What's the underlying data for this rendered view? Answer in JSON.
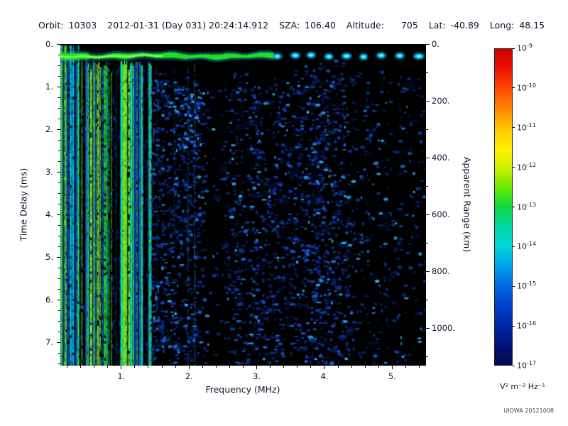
{
  "header": {
    "items": [
      {
        "label": "Orbit:",
        "value": "10303"
      },
      {
        "label": "",
        "value": "2012-01-31 (Day 031) 20:24:14.912"
      },
      {
        "label": "SZA:",
        "value": "106.40"
      },
      {
        "label": "Altitude:",
        "value": "705"
      },
      {
        "label": "Lat:",
        "value": "-40.89"
      },
      {
        "label": "Long:",
        "value": "48.15"
      }
    ]
  },
  "credit": "UIOWA 20121008",
  "chart_data": {
    "type": "heatmap",
    "description": "Radar sounder ionogram: received spectral density versus sounding frequency and echo time delay; black background, blue speckle echoes, bright green surface-reflection band near 0.28 ms, green/cyan plasma-harmonic vertical stripes below 1.45 MHz, dark gap near 2.3-2.5 MHz, dense blue column near 3.85-4.2 MHz",
    "xlabel": "Frequency (MHz)",
    "ylabel_left": "Time Delay (ms)",
    "ylabel_right": "Apparent Range (km)",
    "x_range_mhz": [
      0.1,
      5.5
    ],
    "y_left_range_ms": [
      0,
      7.55
    ],
    "y_right_range_km": [
      0,
      1132
    ],
    "x_ticks": [
      {
        "value": 1,
        "label": "1."
      },
      {
        "value": 2,
        "label": "2."
      },
      {
        "value": 3,
        "label": "3."
      },
      {
        "value": 4,
        "label": "4."
      },
      {
        "value": 5,
        "label": "5."
      }
    ],
    "y_left_ticks": [
      {
        "value": 0,
        "label": "0."
      },
      {
        "value": 1,
        "label": "1."
      },
      {
        "value": 2,
        "label": "2."
      },
      {
        "value": 3,
        "label": "3."
      },
      {
        "value": 4,
        "label": "4."
      },
      {
        "value": 5,
        "label": "5."
      },
      {
        "value": 6,
        "label": "6."
      },
      {
        "value": 7,
        "label": "7."
      }
    ],
    "y_right_ticks": [
      {
        "value": 0,
        "label": "0."
      },
      {
        "value": 200,
        "label": "200."
      },
      {
        "value": 400,
        "label": "400."
      },
      {
        "value": 600,
        "label": "600."
      },
      {
        "value": 800,
        "label": "800."
      },
      {
        "value": 1000,
        "label": "1000."
      }
    ],
    "colorbar": {
      "scale": "log",
      "units": "V² m⁻² Hz⁻¹",
      "tick_exponents": [
        -9,
        -10,
        -11,
        -12,
        -13,
        -14,
        -15,
        -16,
        -17
      ],
      "gradient": [
        {
          "pos": 0,
          "color": "#cc0000"
        },
        {
          "pos": 6,
          "color": "#ee1000"
        },
        {
          "pos": 12,
          "color": "#ff4400"
        },
        {
          "pos": 19,
          "color": "#ff8800"
        },
        {
          "pos": 26,
          "color": "#ffcc00"
        },
        {
          "pos": 32,
          "color": "#fff200"
        },
        {
          "pos": 38,
          "color": "#ccf000"
        },
        {
          "pos": 44,
          "color": "#66e800"
        },
        {
          "pos": 50,
          "color": "#10d840"
        },
        {
          "pos": 56,
          "color": "#00d8a0"
        },
        {
          "pos": 62,
          "color": "#00d8d8"
        },
        {
          "pos": 68,
          "color": "#00a8e8"
        },
        {
          "pos": 74,
          "color": "#0070e0"
        },
        {
          "pos": 80,
          "color": "#0048d0"
        },
        {
          "pos": 87,
          "color": "#0028a8"
        },
        {
          "pos": 94,
          "color": "#001478"
        },
        {
          "pos": 100,
          "color": "#000a50"
        }
      ]
    },
    "render": {
      "seed": 20120131,
      "background": "#000000",
      "surface_band": {
        "delay_ms": 0.28,
        "continuous_until_mhz": 3.25,
        "bright_core_until_mhz": 1.6,
        "main_color": "#22dd22",
        "bead_color": "#00ccee"
      },
      "harmonic_stripes": {
        "freq_min_mhz": 0.1,
        "freq_max_mhz": 1.45,
        "line_count": 85,
        "colors": [
          "#2fe32f",
          "#8de62e",
          "#00d2e0",
          "#1664e0",
          "#0a2f9e"
        ]
      },
      "speckle": {
        "attempts": 5200,
        "density_by_freq": [
          [
            1.45,
            0.55
          ],
          [
            1.6,
            0.75
          ],
          [
            2.15,
            0.7
          ],
          [
            2.3,
            0.06
          ],
          [
            2.5,
            0.1
          ],
          [
            2.6,
            0.5
          ],
          [
            3.0,
            0.5
          ],
          [
            3.7,
            0.6
          ],
          [
            3.85,
            0.85
          ],
          [
            4.2,
            0.8
          ],
          [
            4.45,
            0.3
          ],
          [
            4.8,
            0.22
          ],
          [
            5.5,
            0.18
          ]
        ],
        "colors": [
          "#2cb4ff",
          "#1670ec",
          "#0c42bc",
          "#072a88"
        ]
      },
      "vertical_lines": [
        [
          2.08,
          0.45,
          7.5,
          0.8
        ],
        [
          1.98,
          0.45,
          7.5,
          0.5
        ],
        [
          1.78,
          0.6,
          4.5,
          0.35
        ]
      ],
      "bright_cluster": {
        "freq_mhz": [
          1.8,
          2.25
        ],
        "delay_ms": [
          1.0,
          2.6
        ],
        "count": 55
      }
    }
  }
}
